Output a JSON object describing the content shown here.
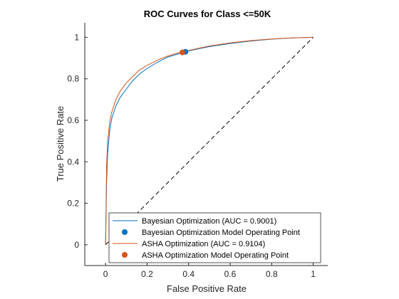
{
  "chart_data": {
    "type": "line",
    "title": "ROC Curves for Class <=50K",
    "xlabel": "False Positive Rate",
    "ylabel": "True Positive Rate",
    "xlim": [
      -0.1,
      1.07
    ],
    "ylim": [
      -0.1,
      1.07
    ],
    "xticks": [
      0,
      0.2,
      0.4,
      0.6,
      0.8,
      1
    ],
    "yticks": [
      0,
      0.2,
      0.4,
      0.6,
      0.8,
      1
    ],
    "xtick_labels": [
      "0",
      "0.2",
      "0.4",
      "0.6",
      "0.8",
      "1"
    ],
    "ytick_labels": [
      "0",
      "0.2",
      "0.4",
      "0.6",
      "0.8",
      "1"
    ],
    "grid": false,
    "legend_position": "bottom-right",
    "series": [
      {
        "name": "Bayesian Optimization (AUC = 0.9001)",
        "color": "#0072BD",
        "kind": "line",
        "x": [
          0,
          0.005,
          0.01,
          0.02,
          0.03,
          0.05,
          0.07,
          0.1,
          0.13,
          0.16,
          0.2,
          0.25,
          0.3,
          0.35,
          0.38,
          0.45,
          0.5,
          0.6,
          0.7,
          0.8,
          0.9,
          1.0
        ],
        "y": [
          0,
          0.3,
          0.44,
          0.55,
          0.61,
          0.67,
          0.71,
          0.75,
          0.79,
          0.82,
          0.85,
          0.88,
          0.905,
          0.92,
          0.93,
          0.945,
          0.955,
          0.97,
          0.982,
          0.991,
          0.997,
          1.0
        ]
      },
      {
        "name": "Bayesian Optimization Model Operating Point",
        "color": "#0072BD",
        "kind": "point",
        "x": [
          0.385
        ],
        "y": [
          0.93
        ]
      },
      {
        "name": "ASHA Optimization (AUC = 0.9104)",
        "color": "#D95319",
        "kind": "line",
        "x": [
          0,
          0.005,
          0.01,
          0.02,
          0.03,
          0.05,
          0.07,
          0.1,
          0.13,
          0.16,
          0.2,
          0.25,
          0.3,
          0.35,
          0.37,
          0.45,
          0.5,
          0.6,
          0.7,
          0.8,
          0.9,
          1.0
        ],
        "y": [
          0,
          0.38,
          0.5,
          0.59,
          0.64,
          0.7,
          0.74,
          0.78,
          0.81,
          0.84,
          0.865,
          0.89,
          0.91,
          0.925,
          0.93,
          0.948,
          0.958,
          0.973,
          0.984,
          0.992,
          0.997,
          1.0
        ]
      },
      {
        "name": "ASHA Optimization Model Operating Point",
        "color": "#D95319",
        "kind": "point",
        "x": [
          0.37
        ],
        "y": [
          0.927
        ]
      }
    ],
    "reference_line": {
      "x": [
        0,
        1
      ],
      "y": [
        0,
        1
      ],
      "color": "#000000",
      "style": "dashed"
    }
  }
}
